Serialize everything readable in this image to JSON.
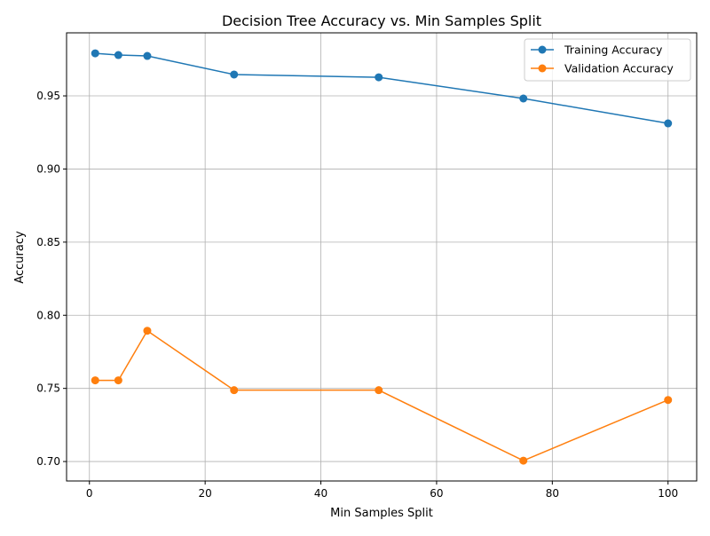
{
  "chart_data": {
    "type": "line",
    "title": "Decision Tree Accuracy vs. Min Samples Split",
    "xlabel": "Min Samples Split",
    "ylabel": "Accuracy",
    "x": [
      1,
      5,
      10,
      25,
      50,
      75,
      100
    ],
    "series": [
      {
        "name": "Training Accuracy",
        "color": "#1f77b4",
        "values": [
          0.9791,
          0.9779,
          0.9773,
          0.9646,
          0.9627,
          0.9482,
          0.9312
        ]
      },
      {
        "name": "Validation Accuracy",
        "color": "#ff7f0e",
        "values": [
          0.7555,
          0.7555,
          0.7894,
          0.7488,
          0.7488,
          0.7006,
          0.7421
        ]
      }
    ],
    "xlim": [
      -3.95,
      104.95
    ],
    "ylim": [
      0.6867,
      0.9931
    ],
    "xticks": [
      0,
      20,
      40,
      60,
      80,
      100
    ],
    "xtick_labels": [
      "0",
      "20",
      "40",
      "60",
      "80",
      "100"
    ],
    "yticks": [
      0.7,
      0.75,
      0.8,
      0.85,
      0.9,
      0.95
    ],
    "ytick_labels": [
      "0.70",
      "0.75",
      "0.80",
      "0.85",
      "0.90",
      "0.95"
    ],
    "grid": true,
    "markers": "circle",
    "legend_position": "top-right"
  }
}
